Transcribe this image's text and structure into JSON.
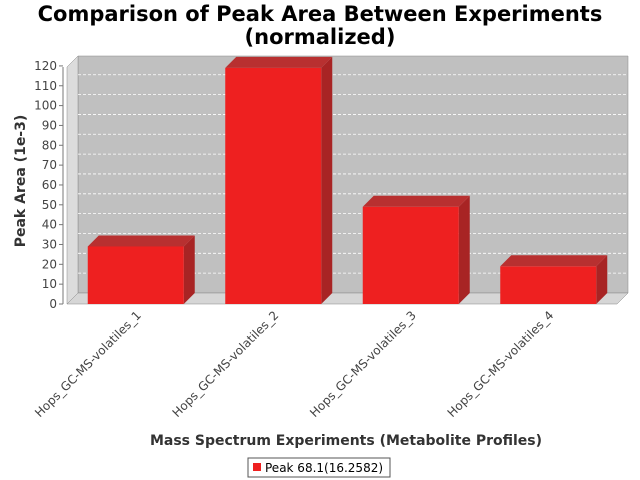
{
  "chart_data": {
    "type": "bar",
    "title": "Comparison of Peak Area Between Experiments",
    "subtitle": "(normalized)",
    "xlabel": "Mass Spectrum Experiments (Metabolite Profiles)",
    "ylabel": "Peak Area (1e-3)",
    "categories": [
      "Hops_GC-MS-volatiles_1",
      "Hops_GC-MS-volatiles_2",
      "Hops_GC-MS-volatiles_3",
      "Hops_GC-MS-volatiles_4"
    ],
    "series": [
      {
        "name": "Peak 68.1(16.2582)",
        "values": [
          29,
          119,
          49,
          19
        ],
        "color": "#ee2020"
      }
    ],
    "ylim": [
      0,
      125
    ],
    "yticks": [
      0,
      10,
      20,
      30,
      40,
      50,
      60,
      70,
      80,
      90,
      100,
      110,
      120
    ],
    "grid": true,
    "legend_position": "bottom",
    "plot_background": "#c0c0c0"
  }
}
